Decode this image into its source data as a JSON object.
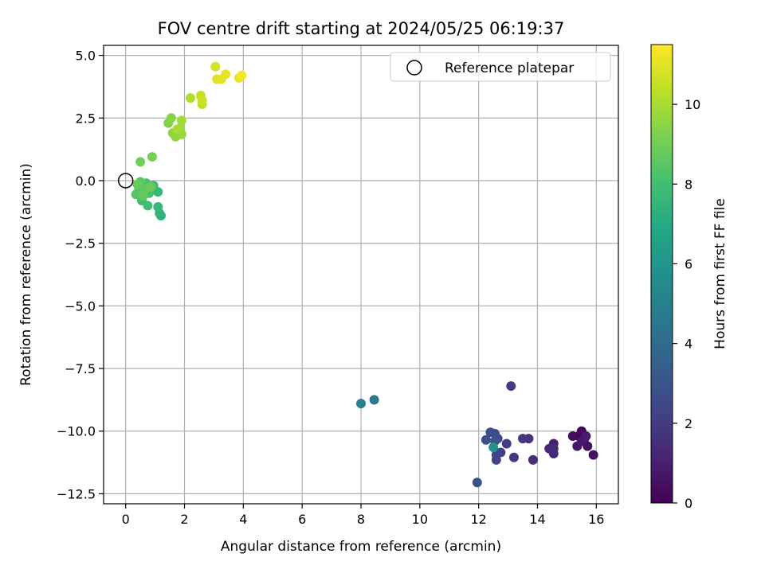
{
  "chart_data": {
    "type": "scatter",
    "title": "FOV centre drift starting at 2024/05/25 06:19:37",
    "xlabel": "Angular distance from reference (arcmin)",
    "ylabel": "Rotation from reference (arcmin)",
    "xlim": [
      -0.75,
      16.75
    ],
    "ylim": [
      -12.9,
      5.4
    ],
    "xticks": [
      0,
      2,
      4,
      6,
      8,
      10,
      12,
      14,
      16
    ],
    "yticks": [
      5.0,
      2.5,
      0.0,
      -2.5,
      -5.0,
      -7.5,
      -10.0,
      -12.5
    ],
    "xtick_labels": [
      "0",
      "2",
      "4",
      "6",
      "8",
      "10",
      "12",
      "14",
      "16"
    ],
    "ytick_labels": [
      "5.0",
      "2.5",
      "0.0",
      "−2.5",
      "−5.0",
      "−7.5",
      "−10.0",
      "−12.5"
    ],
    "grid": true,
    "legend": {
      "placement": "top-right",
      "entries": [
        "Reference platepar"
      ]
    },
    "reference_point": {
      "x": 0.0,
      "y": 0.0
    },
    "colorbar": {
      "label": "Hours from first FF file",
      "range": [
        0,
        11.5
      ],
      "ticks": [
        0,
        2,
        4,
        6,
        8,
        10
      ],
      "tick_labels": [
        "0",
        "2",
        "4",
        "6",
        "8",
        "10"
      ],
      "colormap": "viridis"
    },
    "points": [
      {
        "x": 15.4,
        "y": -10.2,
        "c": 0.1
      },
      {
        "x": 15.5,
        "y": -10.0,
        "c": 0.2
      },
      {
        "x": 15.6,
        "y": -10.3,
        "c": 0.3
      },
      {
        "x": 15.2,
        "y": -10.2,
        "c": 0.4
      },
      {
        "x": 15.7,
        "y": -10.6,
        "c": 0.5
      },
      {
        "x": 15.9,
        "y": -10.95,
        "c": 0.6
      },
      {
        "x": 15.35,
        "y": -10.6,
        "c": 0.7
      },
      {
        "x": 15.5,
        "y": -10.4,
        "c": 0.8
      },
      {
        "x": 15.65,
        "y": -10.2,
        "c": 0.9
      },
      {
        "x": 14.55,
        "y": -10.5,
        "c": 1.0
      },
      {
        "x": 14.4,
        "y": -10.7,
        "c": 1.2
      },
      {
        "x": 14.55,
        "y": -10.9,
        "c": 1.3
      },
      {
        "x": 14.55,
        "y": -10.7,
        "c": 1.4
      },
      {
        "x": 13.85,
        "y": -11.15,
        "c": 1.5
      },
      {
        "x": 13.7,
        "y": -10.3,
        "c": 1.6
      },
      {
        "x": 13.5,
        "y": -10.3,
        "c": 1.8
      },
      {
        "x": 13.2,
        "y": -11.05,
        "c": 1.9
      },
      {
        "x": 13.1,
        "y": -8.2,
        "c": 2.0
      },
      {
        "x": 12.95,
        "y": -10.5,
        "c": 2.1
      },
      {
        "x": 12.75,
        "y": -10.85,
        "c": 2.2
      },
      {
        "x": 12.6,
        "y": -11.15,
        "c": 2.3
      },
      {
        "x": 12.6,
        "y": -10.95,
        "c": 2.4
      },
      {
        "x": 12.65,
        "y": -10.3,
        "c": 2.5
      },
      {
        "x": 12.55,
        "y": -10.1,
        "c": 2.6
      },
      {
        "x": 12.4,
        "y": -10.05,
        "c": 2.7
      },
      {
        "x": 12.25,
        "y": -10.35,
        "c": 2.8
      },
      {
        "x": 12.55,
        "y": -10.4,
        "c": 2.9
      },
      {
        "x": 11.95,
        "y": -12.05,
        "c": 3.0
      },
      {
        "x": 8.45,
        "y": -8.75,
        "c": 4.7
      },
      {
        "x": 8.0,
        "y": -8.9,
        "c": 4.9
      },
      {
        "x": 12.5,
        "y": -10.65,
        "c": 5.8
      },
      {
        "x": 1.2,
        "y": -1.4,
        "c": 7.4
      },
      {
        "x": 1.15,
        "y": -1.3,
        "c": 7.5
      },
      {
        "x": 1.1,
        "y": -1.05,
        "c": 7.6
      },
      {
        "x": 1.1,
        "y": -0.45,
        "c": 7.7
      },
      {
        "x": 0.95,
        "y": -0.2,
        "c": 7.8
      },
      {
        "x": 0.75,
        "y": -1.0,
        "c": 7.9
      },
      {
        "x": 0.55,
        "y": -0.8,
        "c": 8.0
      },
      {
        "x": 0.8,
        "y": -0.5,
        "c": 8.1
      },
      {
        "x": 0.7,
        "y": -0.1,
        "c": 8.2
      },
      {
        "x": 0.45,
        "y": -0.3,
        "c": 8.3
      },
      {
        "x": 0.35,
        "y": -0.55,
        "c": 8.4
      },
      {
        "x": 0.5,
        "y": -0.05,
        "c": 8.5
      },
      {
        "x": 0.65,
        "y": -0.35,
        "c": 8.6
      },
      {
        "x": 0.6,
        "y": -0.6,
        "c": 8.7
      },
      {
        "x": 0.4,
        "y": -0.15,
        "c": 8.8
      },
      {
        "x": 0.85,
        "y": -0.25,
        "c": 8.9
      },
      {
        "x": 0.5,
        "y": 0.75,
        "c": 9.0
      },
      {
        "x": 0.9,
        "y": 0.95,
        "c": 9.1
      },
      {
        "x": 1.45,
        "y": 2.3,
        "c": 9.3
      },
      {
        "x": 1.55,
        "y": 2.5,
        "c": 9.4
      },
      {
        "x": 1.6,
        "y": 1.9,
        "c": 9.5
      },
      {
        "x": 1.7,
        "y": 1.75,
        "c": 9.6
      },
      {
        "x": 1.9,
        "y": 1.85,
        "c": 9.7
      },
      {
        "x": 1.85,
        "y": 2.1,
        "c": 9.8
      },
      {
        "x": 1.9,
        "y": 2.4,
        "c": 9.9
      },
      {
        "x": 1.75,
        "y": 2.05,
        "c": 10.0
      },
      {
        "x": 2.2,
        "y": 3.3,
        "c": 10.2
      },
      {
        "x": 2.6,
        "y": 3.05,
        "c": 10.4
      },
      {
        "x": 2.55,
        "y": 3.4,
        "c": 10.5
      },
      {
        "x": 2.6,
        "y": 3.2,
        "c": 10.6
      },
      {
        "x": 3.05,
        "y": 4.55,
        "c": 10.8
      },
      {
        "x": 3.1,
        "y": 4.05,
        "c": 10.9
      },
      {
        "x": 3.25,
        "y": 4.05,
        "c": 11.0
      },
      {
        "x": 3.4,
        "y": 4.25,
        "c": 11.1
      },
      {
        "x": 3.85,
        "y": 4.1,
        "c": 11.2
      },
      {
        "x": 3.95,
        "y": 4.2,
        "c": 11.3
      }
    ]
  }
}
